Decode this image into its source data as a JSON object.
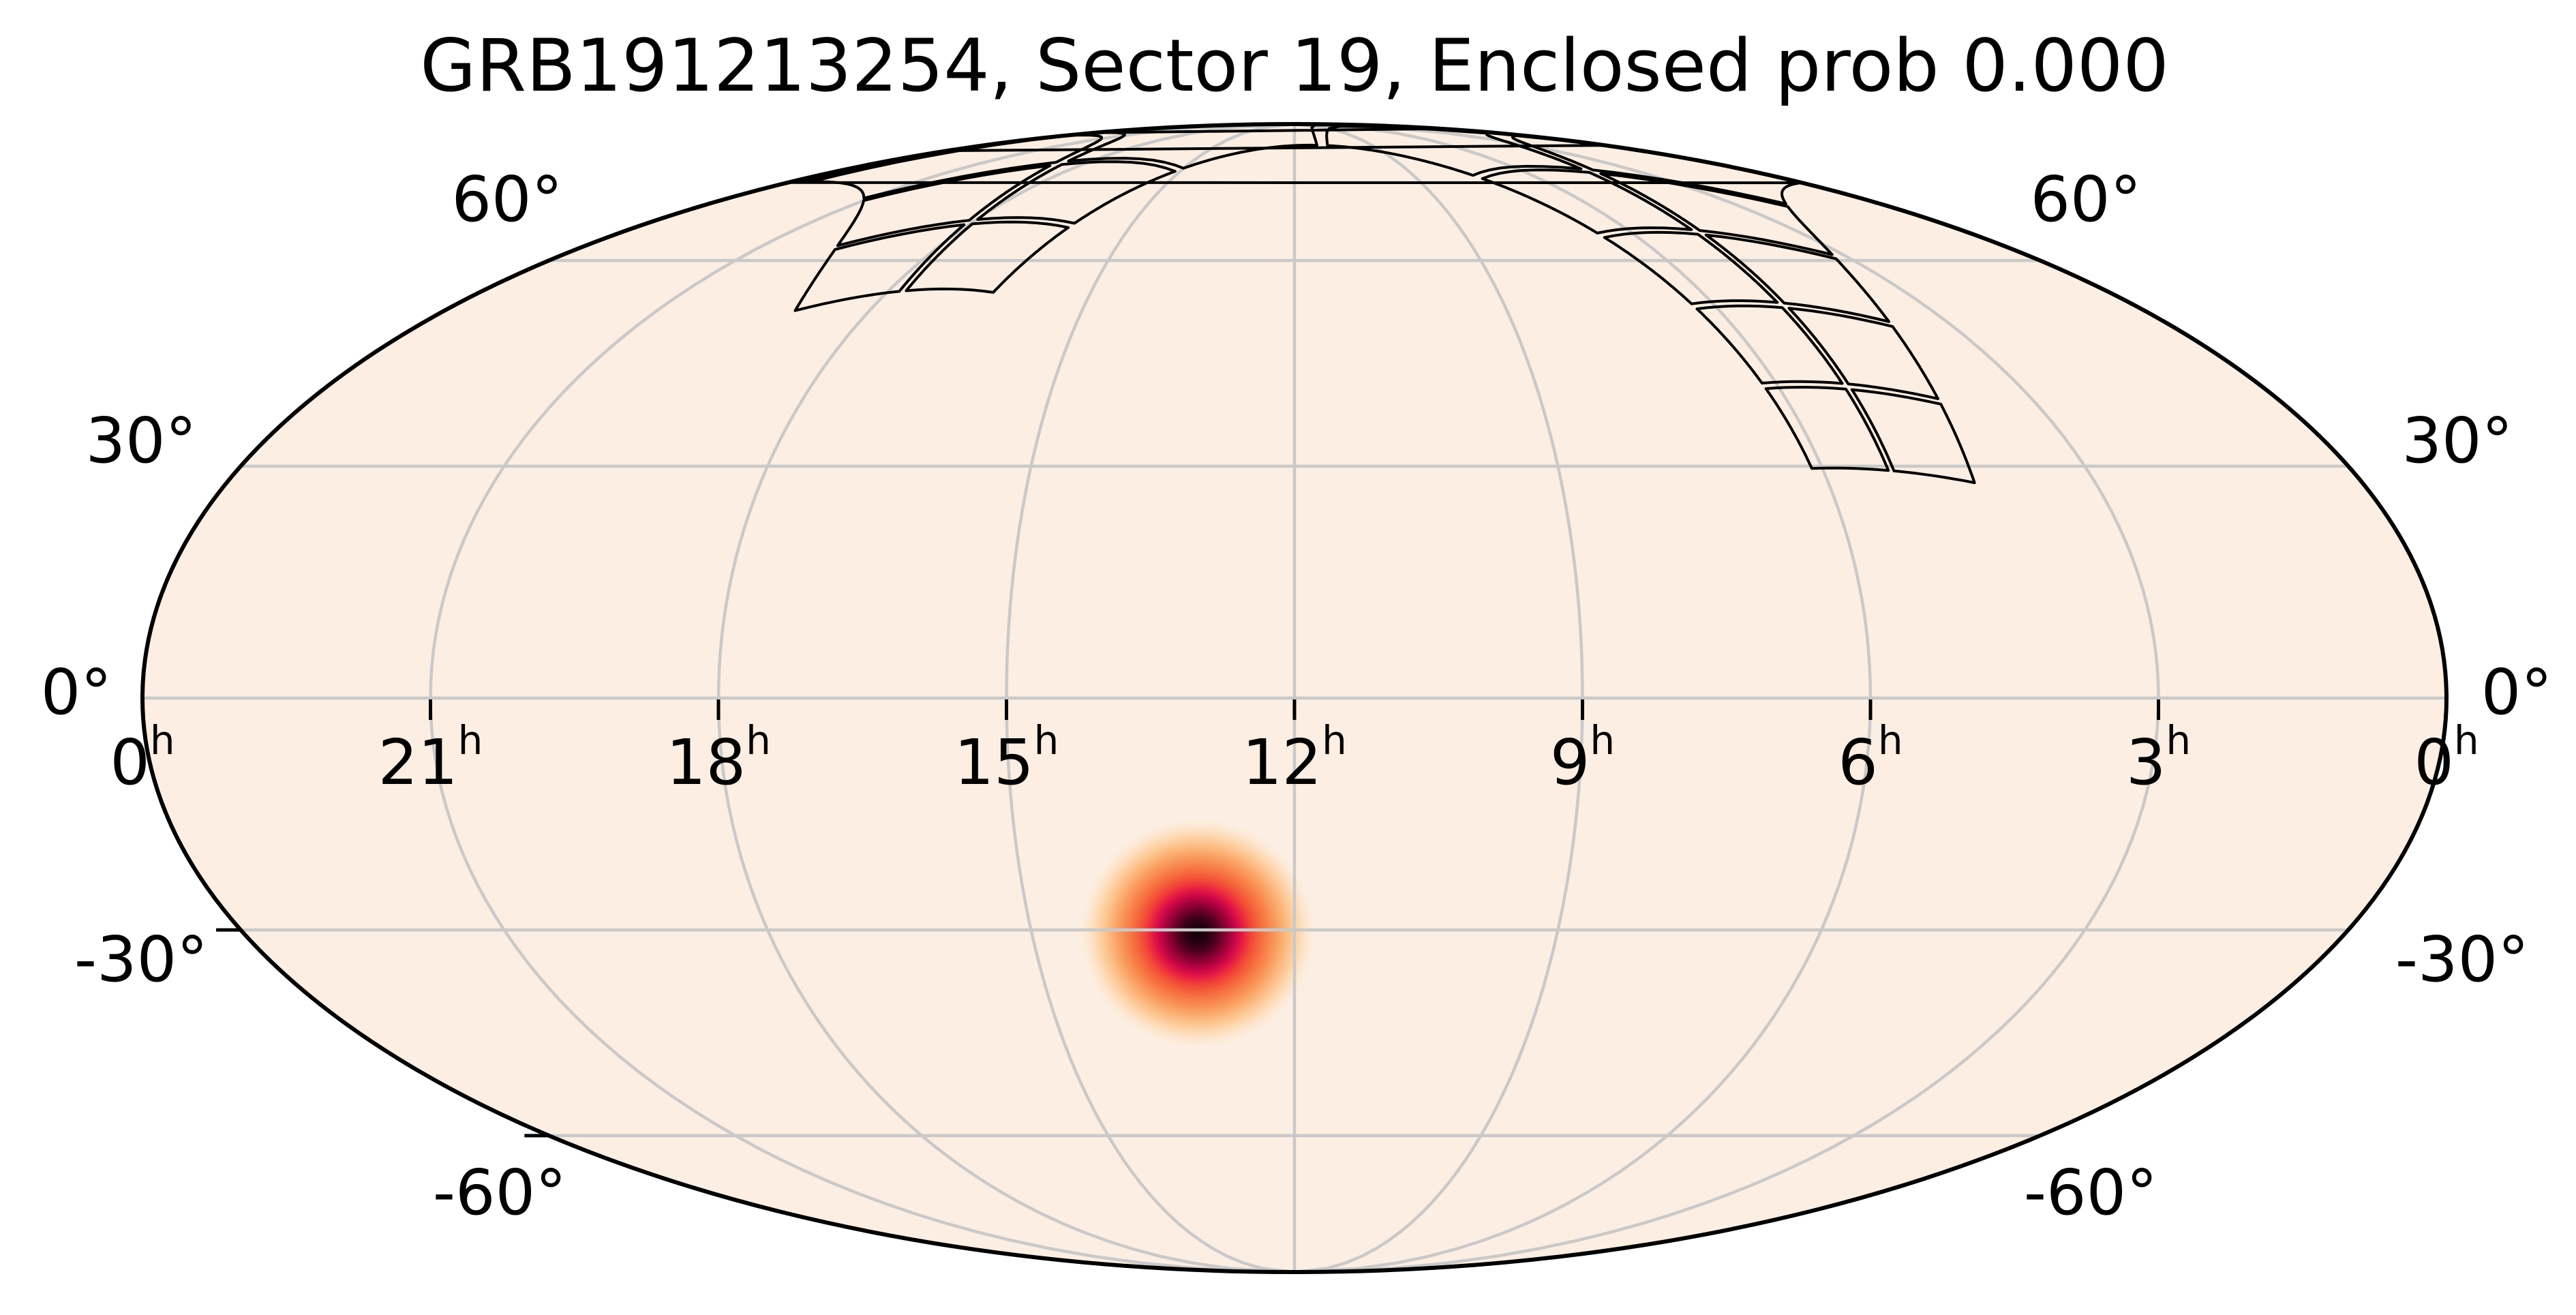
{
  "title": "GRB191213254, Sector 19, Enclosed prob 0.000",
  "figure": {
    "background": "#ffffff",
    "map_fill": "#fceee2",
    "grid_color": "#c9c9c9",
    "outline_color": "#000000",
    "footprint_color": "#000000"
  },
  "chart_data": {
    "type": "sky-map",
    "projection": "mollweide",
    "title": "GRB191213254, Sector 19, Enclosed prob 0.000",
    "grb_name": "GRB191213254",
    "sector": 19,
    "enclosed_prob": "0.000",
    "ra_axis": {
      "tick_hours": [
        "0",
        "21",
        "18",
        "15",
        "12",
        "9",
        "6",
        "3",
        "0"
      ],
      "superscript": "h",
      "direction": "RA increases to the left, 12h at center"
    },
    "dec_axis": {
      "tick_labels": [
        "60°",
        "30°",
        "0°",
        "-30°",
        "-60°"
      ],
      "tick_degrees": [
        60,
        30,
        0,
        -30,
        -60
      ]
    },
    "grid": {
      "meridian_step_hours": 3,
      "parallel_step_deg": 30
    },
    "localization_blob": {
      "ra_deg": 196.6,
      "dec_deg": -30.4,
      "description": "GRB probability localization, dark center = highest probability",
      "colormap_inner_to_outer": [
        "#120007",
        "#550020",
        "#b00340",
        "#e01545",
        "#f45a38",
        "#f99b5e",
        "#fcc48f",
        "#fde3c8",
        "#fceee2"
      ]
    },
    "tess_footprint_strip": {
      "description": "TESS Sector 19 four-camera strip (2x2 CCDs per camera) crossing near the north celestial pole",
      "strip_start": {
        "ra_deg": 78.5,
        "dec_deg": 29.0
      },
      "strip_end": {
        "ra_deg": 266.3,
        "dec_deg": 52.7
      },
      "cameras": 4,
      "camera_size_deg": 24,
      "ccd_layout": "2x2",
      "ccd_gap_deg": 0.8
    }
  }
}
